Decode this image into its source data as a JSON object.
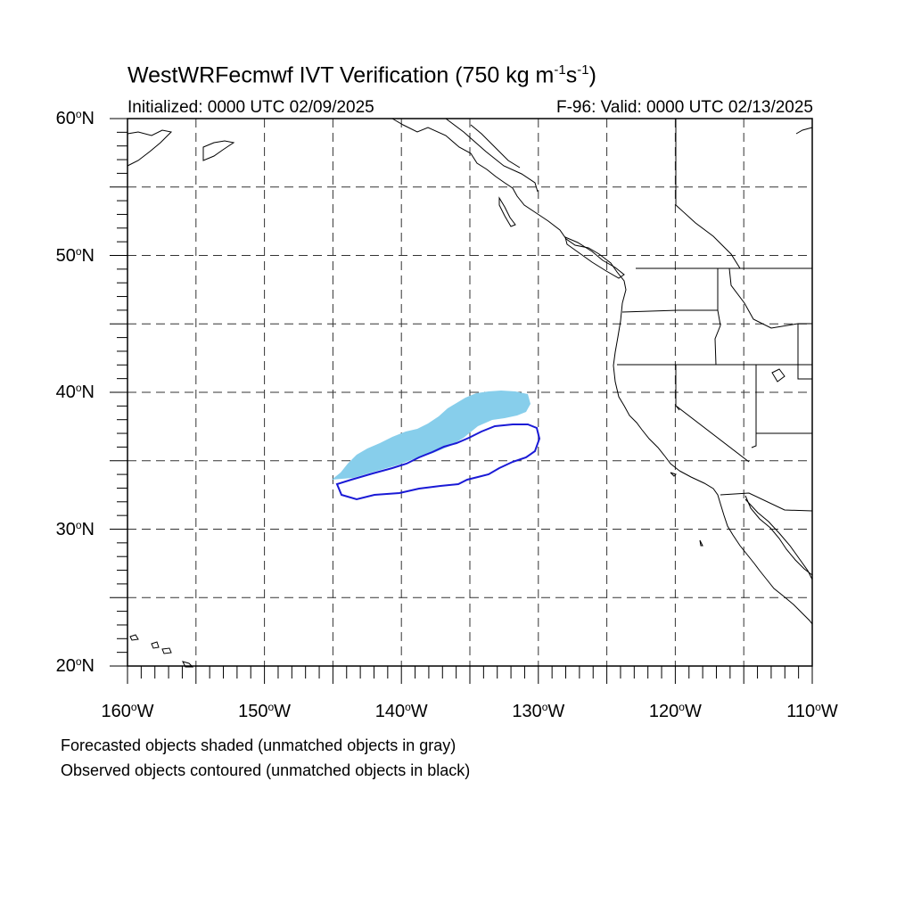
{
  "title": {
    "prefix": "WestWRFecmwf IVT Verification (750 kg m",
    "exp1": "-1",
    "mid": "s",
    "exp2": "-1",
    "suffix": ")"
  },
  "initialized": "Initialized: 0000 UTC 02/09/2025",
  "valid": "F-96: Valid: 0000 UTC 02/13/2025",
  "lat_labels": [
    {
      "value": 60,
      "text": "60",
      "hemi": "N"
    },
    {
      "value": 50,
      "text": "50",
      "hemi": "N"
    },
    {
      "value": 40,
      "text": "40",
      "hemi": "N"
    },
    {
      "value": 30,
      "text": "30",
      "hemi": "N"
    },
    {
      "value": 20,
      "text": "20",
      "hemi": "N"
    }
  ],
  "lon_labels": [
    {
      "value": -160,
      "text": "160",
      "hemi": "W"
    },
    {
      "value": -150,
      "text": "150",
      "hemi": "W"
    },
    {
      "value": -140,
      "text": "140",
      "hemi": "W"
    },
    {
      "value": -130,
      "text": "130",
      "hemi": "W"
    },
    {
      "value": -120,
      "text": "120",
      "hemi": "W"
    },
    {
      "value": -110,
      "text": "110",
      "hemi": "W"
    }
  ],
  "notes": {
    "line1": "Forecasted objects shaded (unmatched objects in gray)",
    "line2": "Observed objects contoured (unmatched objects in black)"
  },
  "map": {
    "lon_range": [
      -160,
      -110
    ],
    "lat_range": [
      20,
      60
    ],
    "grid_lon_step": 5,
    "grid_lat_step": 5,
    "colors": {
      "forecast_fill": "#87ceeb",
      "observed_contour": "#1a1ad6",
      "coast": "#000000",
      "grid": "#333333"
    }
  }
}
